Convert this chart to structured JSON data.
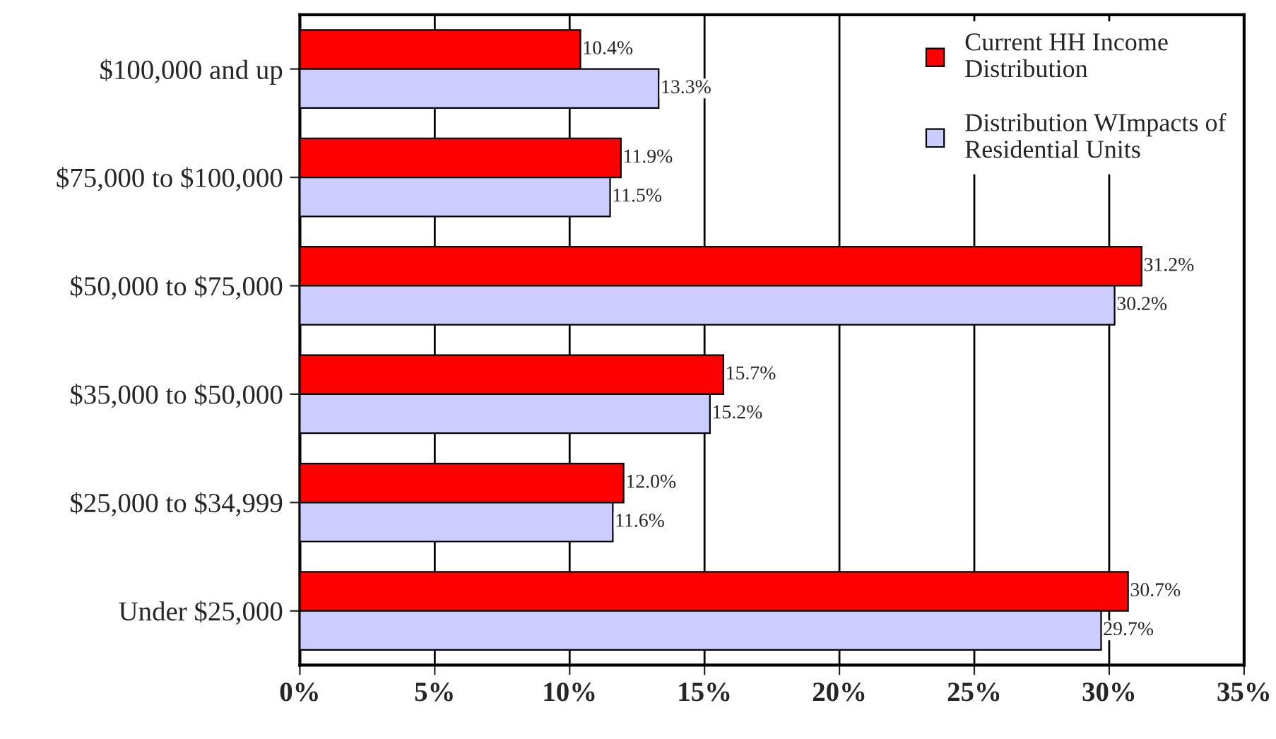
{
  "chart_data": {
    "type": "bar",
    "orientation": "horizontal",
    "categories": [
      "$100,000 and up",
      "$75,000 to $100,000",
      "$50,000 to $75,000",
      "$35,000 to $50,000",
      "$25,000 to $34,999",
      "Under $25,000"
    ],
    "series": [
      {
        "name": "Current HH Income Distribution",
        "color": "#ff0000",
        "values": [
          10.4,
          11.9,
          31.2,
          15.7,
          12.0,
          30.7
        ],
        "value_labels": [
          "10.4%",
          "11.9%",
          "31.2%",
          "15.7%",
          "12.0%",
          "30.7%"
        ]
      },
      {
        "name": "Distribution WImpacts of Residential Units",
        "color": "#ccccff",
        "values": [
          13.3,
          11.5,
          30.2,
          15.2,
          11.6,
          29.7
        ],
        "value_labels": [
          "13.3%",
          "11.5%",
          "30.2%",
          "15.2%",
          "11.6%",
          "29.7%"
        ]
      }
    ],
    "xlim": [
      0,
      35
    ],
    "xticks": [
      {
        "value": 0,
        "label": "0%"
      },
      {
        "value": 5,
        "label": "5%"
      },
      {
        "value": 10,
        "label": "10%"
      },
      {
        "value": 15,
        "label": "15%"
      },
      {
        "value": 20,
        "label": "20%"
      },
      {
        "value": 25,
        "label": "25%"
      },
      {
        "value": 30,
        "label": "30%"
      },
      {
        "value": 35,
        "label": "35%"
      }
    ],
    "grid": "x",
    "legend": "top right"
  }
}
